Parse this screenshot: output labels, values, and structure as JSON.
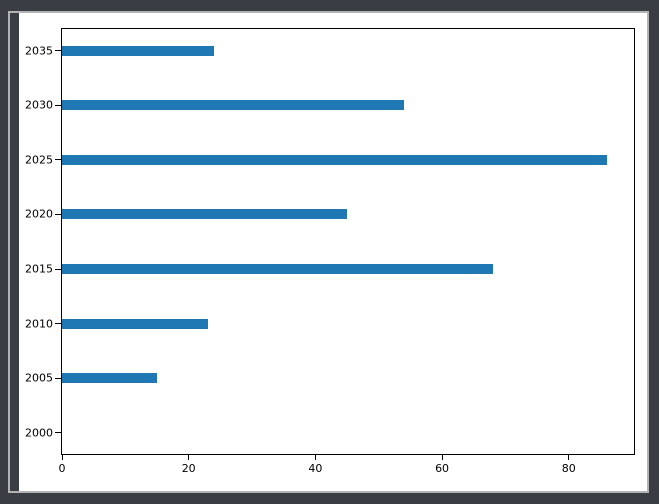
{
  "window": {
    "background": "#3a3e44",
    "ridge_color": "#b3b3b3",
    "figure_background": "#ffffff",
    "spine_color": "#000000",
    "tick_text_color": "#000000"
  },
  "chart_data": {
    "type": "bar",
    "orientation": "horizontal",
    "categories": [
      "2000",
      "2005",
      "2010",
      "2015",
      "2020",
      "2025",
      "2030",
      "2035"
    ],
    "values": [
      0,
      15,
      23,
      68,
      45,
      86,
      54,
      24
    ],
    "bar_color": "#1f77b4",
    "xticks": [
      0,
      20,
      40,
      60,
      80
    ],
    "xlim": [
      0,
      90.3
    ],
    "ylim": [
      -0.39,
      7.4
    ],
    "grid": false,
    "legend": null,
    "bar_thickness_px": 10
  }
}
